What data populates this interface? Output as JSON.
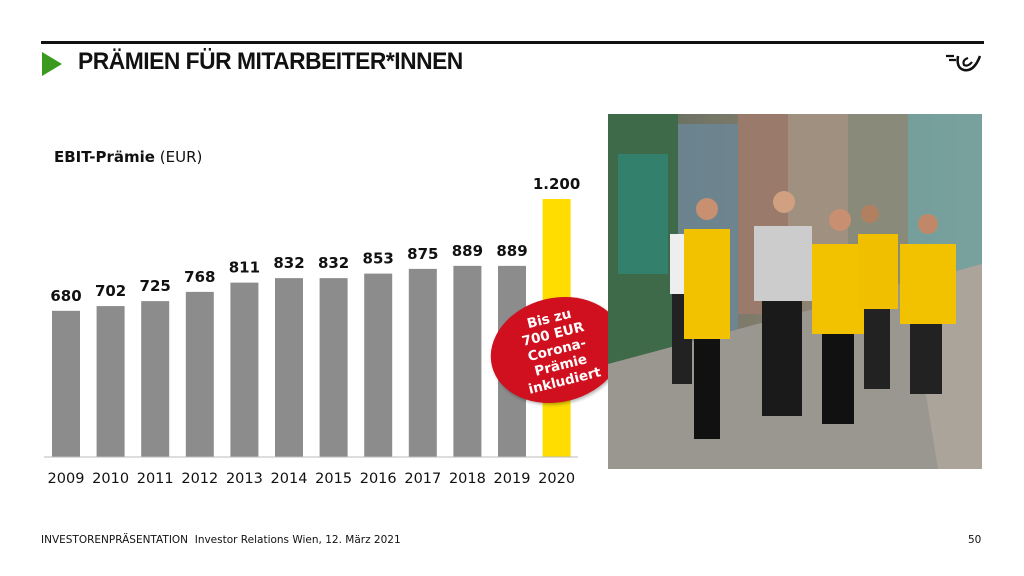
{
  "header": {
    "title": "PRÄMIEN FÜR MITARBEITER*INNEN"
  },
  "colors": {
    "accent": "#3a9a1e",
    "bar": "#8c8c8c",
    "highlight": "#ffdd00",
    "badge": "#d0101e"
  },
  "chart_data": {
    "type": "bar",
    "title_bold": "EBIT-Prämie",
    "title_unit": "(EUR)",
    "categories": [
      "2009",
      "2010",
      "2011",
      "2012",
      "2013",
      "2014",
      "2015",
      "2016",
      "2017",
      "2018",
      "2019",
      "2020"
    ],
    "values": [
      680,
      702,
      725,
      768,
      811,
      832,
      832,
      853,
      875,
      889,
      889,
      1200
    ],
    "labels": [
      "680",
      "702",
      "725",
      "768",
      "811",
      "832",
      "832",
      "853",
      "875",
      "889",
      "889",
      "1.200"
    ],
    "highlight_index": 11,
    "ylim": [
      0,
      1200
    ],
    "grid": false,
    "annotation": [
      "Bis zu",
      "700 EUR",
      "Corona-",
      "Prämie",
      "inkludiert"
    ]
  },
  "footer": {
    "left_bold": "INVESTORENPRÄSENTATION",
    "left_text": "Investor Relations Wien, 12. März 2021",
    "page": "50"
  }
}
